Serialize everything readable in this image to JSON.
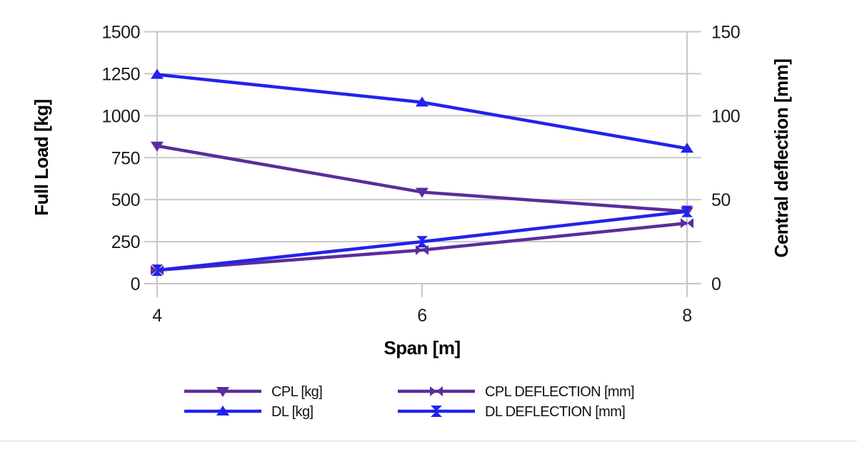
{
  "page": {
    "background": "#ffffff"
  },
  "chart_data": {
    "type": "line",
    "title": "",
    "xlabel": "Span [m]",
    "ylabel_left": "Full Load [kg]",
    "ylabel_right": "Central deflection [mm]",
    "x": [
      4,
      6,
      8
    ],
    "x_tick_labels": [
      "4",
      "6",
      "8"
    ],
    "left_axis": {
      "label": "Full Load [kg]",
      "min": 0,
      "max": 1500,
      "ticks": [
        1500,
        1250,
        1000,
        750,
        500,
        250,
        0
      ]
    },
    "right_axis": {
      "label": "Central deflection [mm]",
      "min": 0,
      "max": 150,
      "ticks": [
        150,
        100,
        50,
        0
      ]
    },
    "grid": true,
    "legend_position": "bottom",
    "series": [
      {
        "name": "CPL [kg]",
        "axis": "left",
        "color": "#5c2c9a",
        "marker": "triangle-down",
        "values": [
          820,
          545,
          430
        ]
      },
      {
        "name": "DL [kg]",
        "axis": "left",
        "color": "#2222ee",
        "marker": "triangle-up",
        "values": [
          1245,
          1080,
          805
        ]
      },
      {
        "name": "CPL DEFLECTION [mm]",
        "axis": "right",
        "color": "#5c2c9a",
        "marker": "bowtie-horizontal",
        "values": [
          8,
          20,
          36
        ]
      },
      {
        "name": "DL DEFLECTION [mm]",
        "axis": "right",
        "color": "#2222ee",
        "marker": "hourglass-vertical",
        "values": [
          8,
          25,
          43
        ]
      }
    ],
    "colors": {
      "grid": "#c7c7c7",
      "tick_label": "#1b1b1b",
      "axis_title": "#000000",
      "purple": "#5c2c9a",
      "blue": "#2222ee"
    }
  },
  "legend": {
    "columns": [
      {
        "series_indexes": [
          0,
          1
        ]
      },
      {
        "series_indexes": [
          2,
          3
        ]
      }
    ]
  }
}
